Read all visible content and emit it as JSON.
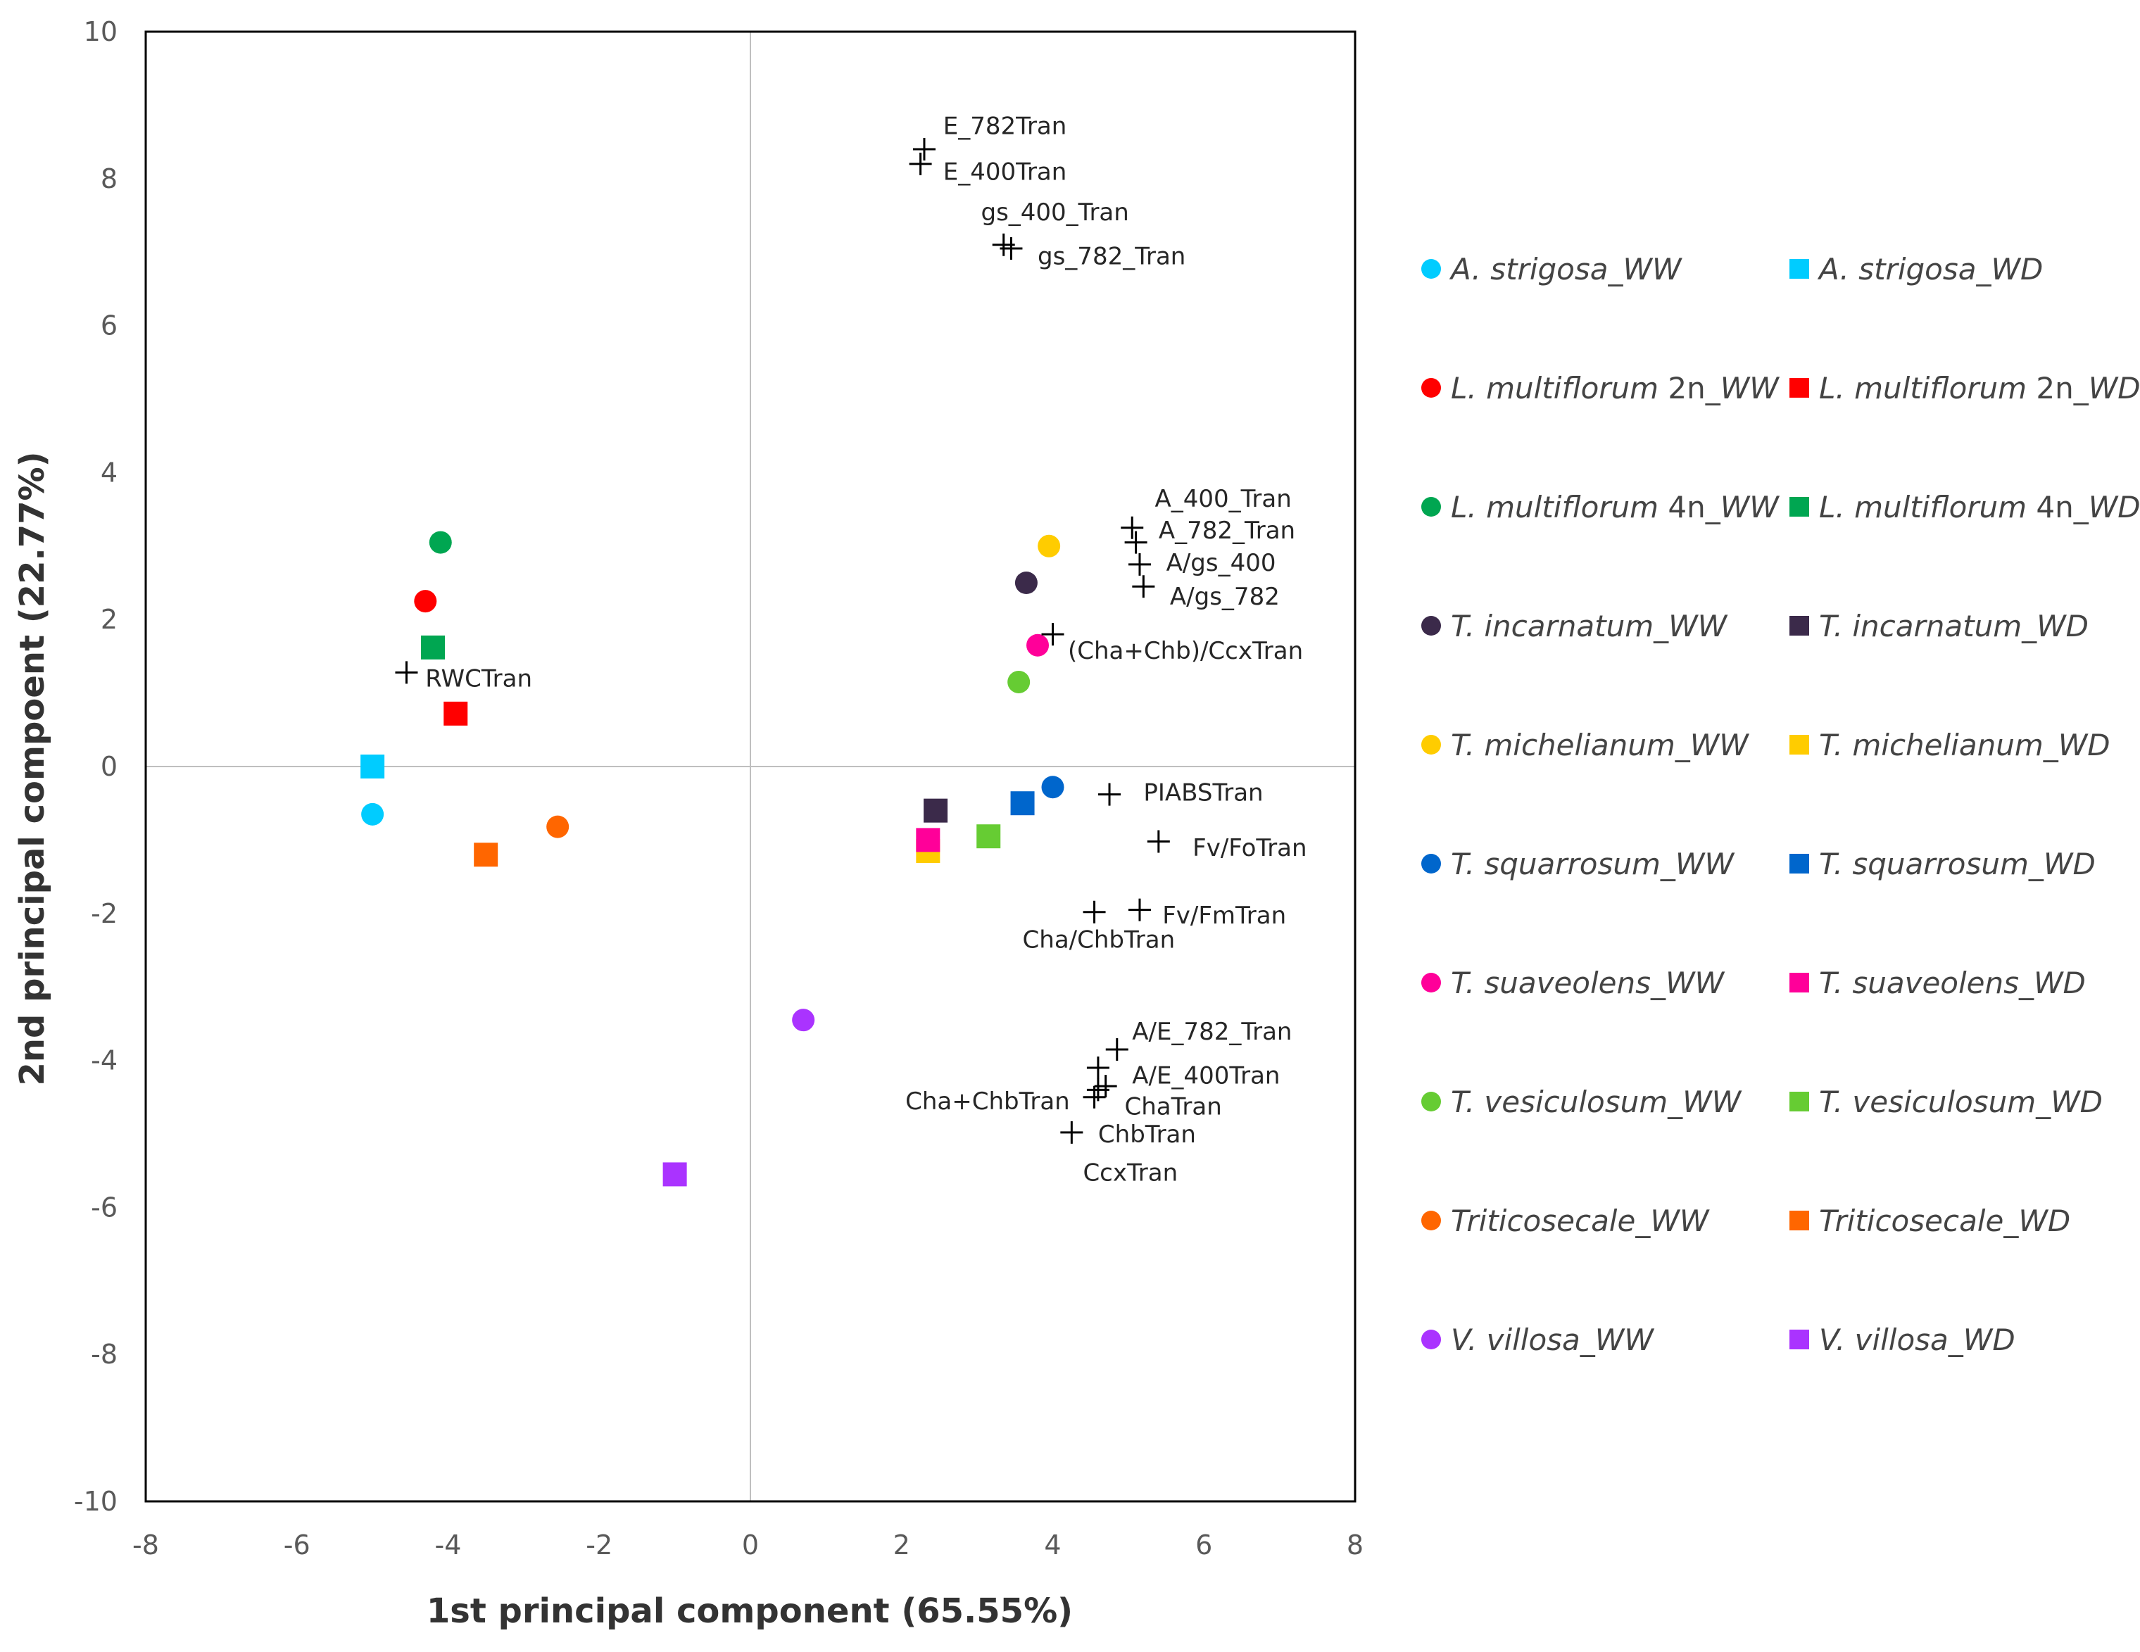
{
  "chart_data": {
    "type": "scatter",
    "title": "",
    "xlabel": "1st principal component (65.55%)",
    "ylabel": "2nd principal compoent (22.77%)",
    "xlim": [
      -8,
      8
    ],
    "ylim": [
      -10,
      10
    ],
    "xticks": [
      -8,
      -6,
      -4,
      -2,
      0,
      2,
      4,
      6,
      8
    ],
    "yticks": [
      10,
      8,
      6,
      4,
      2,
      0,
      -2,
      -4,
      -6,
      -8,
      -10
    ],
    "grid": false,
    "legend_position": "right",
    "series": [
      {
        "name": "A. strigosa_WW",
        "marker": "circle",
        "color": "#00ccff",
        "x": -5.0,
        "y": -0.65
      },
      {
        "name": "A. strigosa_WD",
        "marker": "square",
        "color": "#00ccff",
        "x": -5.0,
        "y": 0.0
      },
      {
        "name": "L. multiflorum 2n_WW",
        "marker": "circle",
        "color": "#ff0000",
        "x": -4.3,
        "y": 2.25
      },
      {
        "name": "L. multiflorum 2n_WD",
        "marker": "square",
        "color": "#ff0000",
        "x": -3.9,
        "y": 0.72
      },
      {
        "name": "L. multiflorum 4n_WW",
        "marker": "circle",
        "color": "#00a651",
        "x": -4.1,
        "y": 3.05
      },
      {
        "name": "L. multiflorum 4n_WD",
        "marker": "square",
        "color": "#00a651",
        "x": -4.2,
        "y": 1.62
      },
      {
        "name": "T. incarnatum_WW",
        "marker": "circle",
        "color": "#3b2a4a",
        "x": 3.65,
        "y": 2.5
      },
      {
        "name": "T. incarnatum_WD",
        "marker": "square",
        "color": "#3b2a4a",
        "x": 2.45,
        "y": -0.6
      },
      {
        "name": "T. michelianum_WW",
        "marker": "circle",
        "color": "#ffcc00",
        "x": 3.95,
        "y": 3.0
      },
      {
        "name": "T. michelianum_WD",
        "marker": "square",
        "color": "#ffcc00",
        "x": 2.35,
        "y": -1.15
      },
      {
        "name": "T. squarrosum_WW",
        "marker": "circle",
        "color": "#0066cc",
        "x": 4.0,
        "y": -0.28
      },
      {
        "name": "T. squarrosum_WD",
        "marker": "square",
        "color": "#0066cc",
        "x": 3.6,
        "y": -0.5
      },
      {
        "name": "T. suaveolens_WW",
        "marker": "circle",
        "color": "#ff0099",
        "x": 3.8,
        "y": 1.65
      },
      {
        "name": "T. suaveolens_WD",
        "marker": "square",
        "color": "#ff0099",
        "x": 2.35,
        "y": -1.0
      },
      {
        "name": "T. vesiculosum_WW",
        "marker": "circle",
        "color": "#66cc33",
        "x": 3.55,
        "y": 1.15
      },
      {
        "name": "T. vesiculosum_WD",
        "marker": "square",
        "color": "#66cc33",
        "x": 3.15,
        "y": -0.95
      },
      {
        "name": "Triticosecale_WW",
        "marker": "circle",
        "color": "#ff6600",
        "x": -2.55,
        "y": -0.82
      },
      {
        "name": "Triticosecale_WD",
        "marker": "square",
        "color": "#ff6600",
        "x": -3.5,
        "y": -1.2
      },
      {
        "name": "V. villosa_WW",
        "marker": "circle",
        "color": "#aa33ff",
        "x": 0.7,
        "y": -3.45
      },
      {
        "name": "V. villosa_WD",
        "marker": "square",
        "color": "#aa33ff",
        "x": -1.0,
        "y": -5.55
      }
    ],
    "loadings": [
      {
        "label": "E_782Tran",
        "x": 2.3,
        "y": 8.4,
        "lx": 2.55,
        "ly": 8.72
      },
      {
        "label": "E_400Tran",
        "x": 2.25,
        "y": 8.2,
        "lx": 2.55,
        "ly": 8.1
      },
      {
        "label": "gs_400_Tran",
        "x": 3.35,
        "y": 7.1,
        "lx": 3.05,
        "ly": 7.55
      },
      {
        "label": "gs_782_Tran",
        "x": 3.45,
        "y": 7.05,
        "lx": 3.8,
        "ly": 6.95
      },
      {
        "label": "A_400_Tran",
        "x": 5.05,
        "y": 3.25,
        "lx": 5.35,
        "ly": 3.65
      },
      {
        "label": "A_782_Tran",
        "x": 5.1,
        "y": 3.05,
        "lx": 5.4,
        "ly": 3.22
      },
      {
        "label": "A/gs_400",
        "x": 5.15,
        "y": 2.75,
        "lx": 5.5,
        "ly": 2.78
      },
      {
        "label": "A/gs_782",
        "x": 5.2,
        "y": 2.45,
        "lx": 5.55,
        "ly": 2.32
      },
      {
        "label": "(Cha+Chb)/CcxTran",
        "x": 4.0,
        "y": 1.8,
        "lx": 4.2,
        "ly": 1.58
      },
      {
        "label": "RWCTran",
        "x": -4.55,
        "y": 1.28,
        "lx": -4.3,
        "ly": 1.2
      },
      {
        "label": "PIABSTran",
        "x": 4.75,
        "y": -0.38,
        "lx": 5.2,
        "ly": -0.35
      },
      {
        "label": "Fv/FoTran",
        "x": 5.4,
        "y": -1.02,
        "lx": 5.85,
        "ly": -1.1
      },
      {
        "label": "Fv/FmTran",
        "x": 5.15,
        "y": -1.95,
        "lx": 5.45,
        "ly": -2.02
      },
      {
        "label": "Cha/ChbTran",
        "x": 4.55,
        "y": -1.98,
        "lx": 3.6,
        "ly": -2.35
      },
      {
        "label": "A/E_782_Tran",
        "x": 4.85,
        "y": -3.85,
        "lx": 5.05,
        "ly": -3.6
      },
      {
        "label": "A/E_400Tran",
        "x": 4.6,
        "y": -4.1,
        "lx": 5.05,
        "ly": -4.2
      },
      {
        "label": "ChaTran",
        "x": 4.7,
        "y": -4.35,
        "lx": 4.95,
        "ly": -4.62
      },
      {
        "label": "Cha+ChbTran",
        "x": 4.55,
        "y": -4.5,
        "lx": 2.05,
        "ly": -4.55
      },
      {
        "label": "ChbTran",
        "x": 4.6,
        "y": -4.4,
        "lx": 4.6,
        "ly": -5.0
      },
      {
        "label": "CcxTran",
        "x": 4.25,
        "y": -4.98,
        "lx": 4.4,
        "ly": -5.52
      }
    ]
  }
}
